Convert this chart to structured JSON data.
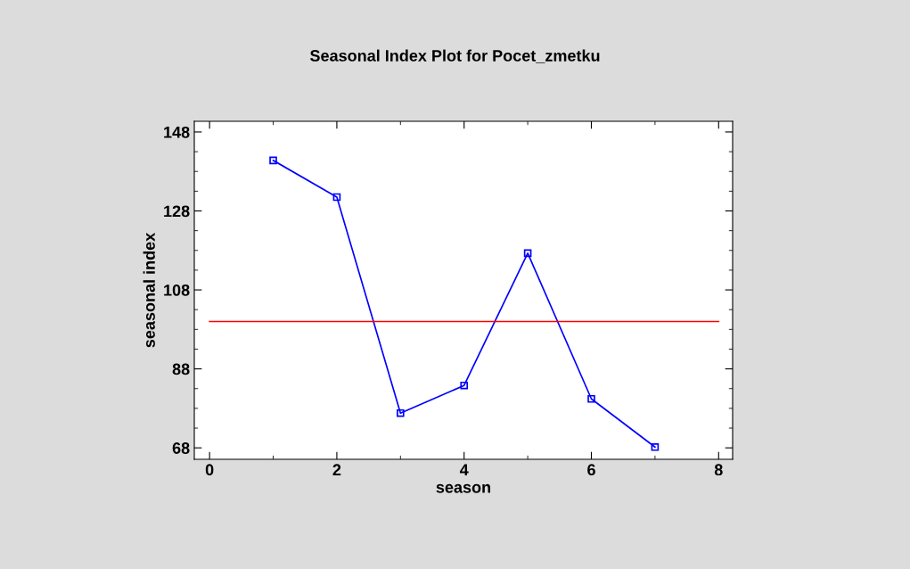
{
  "chart_data": {
    "type": "line",
    "title": "Seasonal Index Plot for Pocet_zmetku",
    "xlabel": "season",
    "ylabel": "seasonal index",
    "series": [
      {
        "x": [
          1,
          2,
          3,
          4,
          5,
          6,
          7
        ],
        "values": [
          140.8,
          131.5,
          76.8,
          83.8,
          117.3,
          80.4,
          68.2
        ],
        "color": "#0000ff",
        "marker": "square"
      },
      {
        "x": [
          0,
          8
        ],
        "values": [
          100,
          100
        ],
        "color": "#ff0000",
        "marker": "none"
      }
    ],
    "xlim": [
      -0.24,
      8.22
    ],
    "xticks": [
      0,
      2,
      4,
      6,
      8
    ],
    "ylim": [
      65.1,
      150.7
    ],
    "yticks": [
      68,
      88,
      108,
      128,
      148
    ],
    "grid": false,
    "line_style": "solid"
  }
}
